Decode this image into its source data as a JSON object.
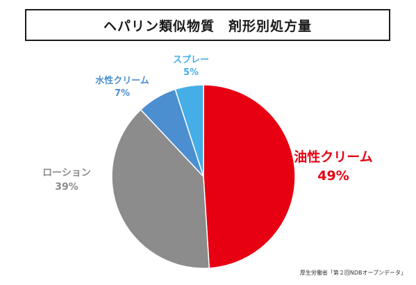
{
  "title": "ヘパリン類似物質　剤形別処方量",
  "source": "厚生労働省「第２回NDBオープンデータ」",
  "chart_data": {
    "type": "pie",
    "start": "12 o'clock",
    "direction": "clockwise",
    "slices": [
      {
        "label": "油性クリーム",
        "value": 49,
        "display": "49%",
        "color": "#e60012"
      },
      {
        "label": "ローション",
        "value": 39,
        "display": "39%",
        "color": "#8c8c8c"
      },
      {
        "label": "水性クリーム",
        "value": 7,
        "display": "7%",
        "color": "#4b8fd0"
      },
      {
        "label": "スプレー",
        "value": 5,
        "display": "5%",
        "color": "#45aee6"
      }
    ]
  }
}
